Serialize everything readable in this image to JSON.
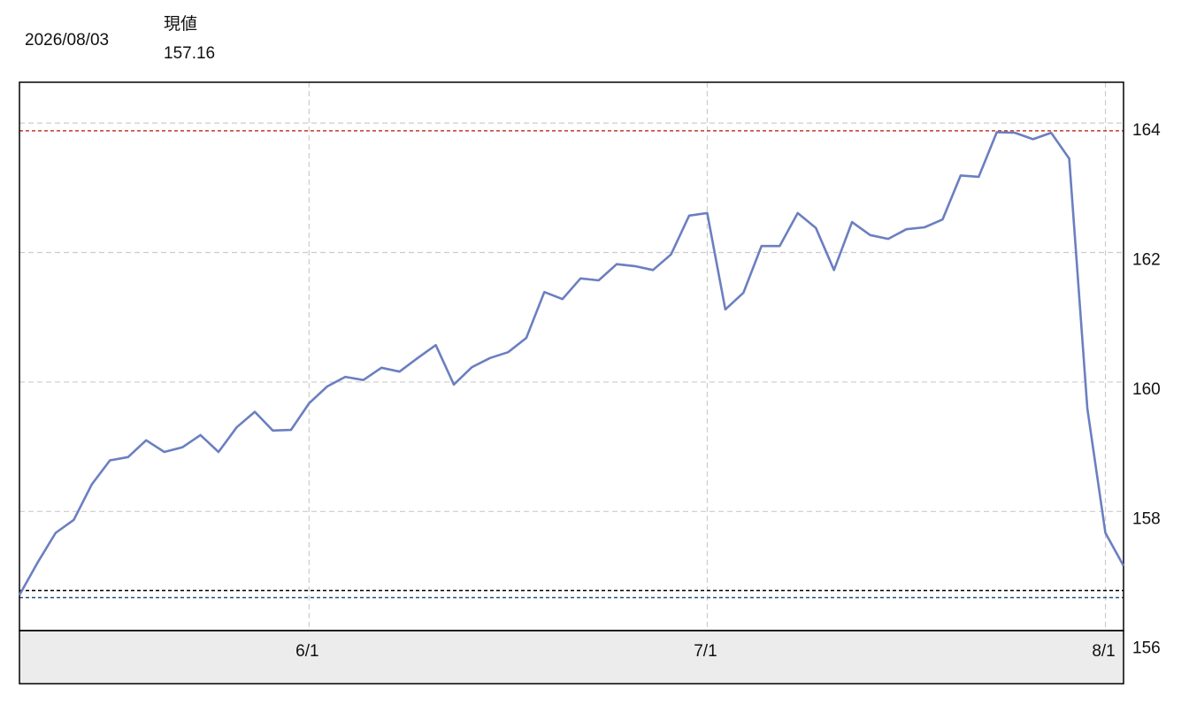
{
  "header": {
    "date": "2026/08/03",
    "label": "現値",
    "value": 157.16
  },
  "chart_data": {
    "type": "line",
    "categories": [
      null,
      null,
      null,
      null,
      null,
      null,
      null,
      null,
      null,
      null,
      null,
      null,
      null,
      null,
      null,
      null,
      "6/1",
      null,
      null,
      null,
      null,
      null,
      null,
      null,
      null,
      null,
      null,
      null,
      null,
      null,
      null,
      null,
      null,
      null,
      null,
      null,
      null,
      null,
      "7/1",
      null,
      null,
      null,
      null,
      null,
      null,
      null,
      null,
      null,
      null,
      null,
      null,
      null,
      null,
      null,
      null,
      null,
      null,
      null,
      null,
      null,
      "8/1",
      null
    ],
    "series": [
      {
        "color": "#6b7fc0",
        "values": [
          156.71,
          157.21,
          157.67,
          157.87,
          158.42,
          158.79,
          158.84,
          159.1,
          158.92,
          158.99,
          159.18,
          158.92,
          159.3,
          159.54,
          159.25,
          159.26,
          159.67,
          159.93,
          160.08,
          160.03,
          160.22,
          160.16,
          160.37,
          160.57,
          159.96,
          160.23,
          160.37,
          160.46,
          160.68,
          161.39,
          161.28,
          161.6,
          161.57,
          161.82,
          161.79,
          161.73,
          161.97,
          162.57,
          162.61,
          161.12,
          161.38,
          162.1,
          162.1,
          162.61,
          162.38,
          161.73,
          162.47,
          162.27,
          162.21,
          162.36,
          162.39,
          162.51,
          163.19,
          163.17,
          163.86,
          163.85,
          163.75,
          163.85,
          163.45,
          159.59,
          157.67,
          157.16
        ]
      }
    ],
    "ylim": [
      156.16,
      164.63
    ],
    "yticks": [
      156,
      158,
      160,
      162,
      164
    ],
    "grid": true,
    "ref_lines": [
      {
        "value": 163.88,
        "color": "#c0392b"
      },
      {
        "value": 156.78,
        "color": "#000000"
      },
      {
        "value": 156.67,
        "color": "#2c4f7c"
      }
    ]
  }
}
